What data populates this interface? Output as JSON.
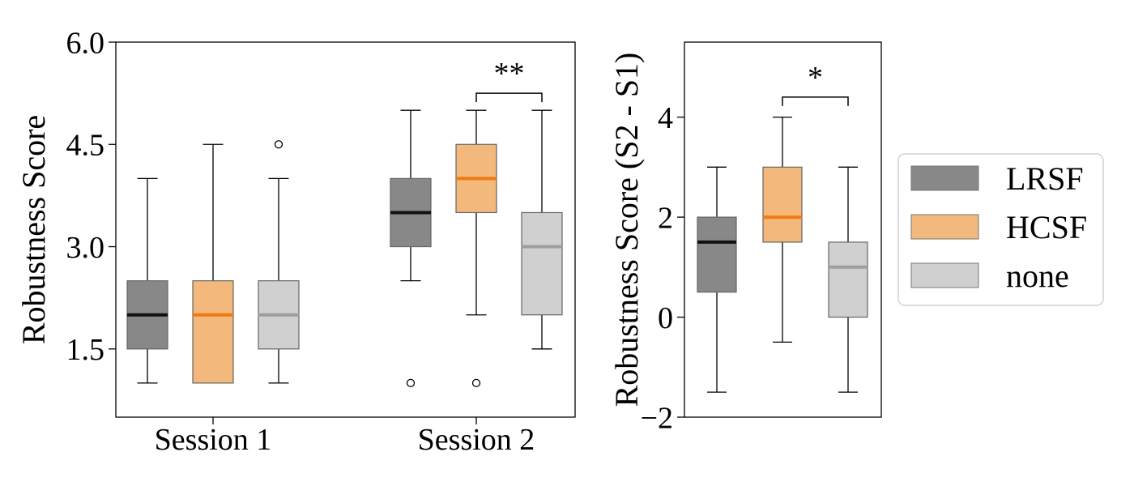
{
  "chart_data": [
    {
      "type": "box",
      "ylabel": "Robustness Score",
      "ylim": [
        0.5,
        6.0
      ],
      "yticks": [
        "1.5",
        "3.0",
        "4.5",
        "6.0"
      ],
      "ytick_values": [
        1.5,
        3.0,
        4.5,
        6.0
      ],
      "categories": [
        "Session 1",
        "Session 2"
      ],
      "groups": [
        {
          "category": "Session 1",
          "boxes": [
            {
              "series": "LRSF",
              "whisker_low": 1.0,
              "q1": 1.5,
              "median": 2.0,
              "q3": 2.5,
              "whisker_high": 4.0,
              "outliers": []
            },
            {
              "series": "HCSF",
              "whisker_low": 1.0,
              "q1": 1.0,
              "median": 2.0,
              "q3": 2.5,
              "whisker_high": 4.5,
              "outliers": []
            },
            {
              "series": "none",
              "whisker_low": 1.0,
              "q1": 1.5,
              "median": 2.0,
              "q3": 2.5,
              "whisker_high": 4.0,
              "outliers": [
                4.5
              ]
            }
          ]
        },
        {
          "category": "Session 2",
          "boxes": [
            {
              "series": "LRSF",
              "whisker_low": 2.5,
              "q1": 3.0,
              "median": 3.5,
              "q3": 4.0,
              "whisker_high": 5.0,
              "outliers": [
                1.0
              ]
            },
            {
              "series": "HCSF",
              "whisker_low": 2.0,
              "q1": 3.5,
              "median": 4.0,
              "q3": 4.5,
              "whisker_high": 5.0,
              "outliers": [
                1.0
              ]
            },
            {
              "series": "none",
              "whisker_low": 1.5,
              "q1": 2.0,
              "median": 3.0,
              "q3": 3.5,
              "whisker_high": 5.0,
              "outliers": []
            }
          ]
        }
      ],
      "annotations": [
        {
          "text": "**",
          "group": "Session 2",
          "from": "HCSF",
          "to": "none",
          "y": 5.25
        }
      ]
    },
    {
      "type": "box",
      "ylabel": "Robustness Score (S2 - S1)",
      "ylim": [
        -2,
        5.5
      ],
      "yticks": [
        "−2",
        "0",
        "2",
        "4"
      ],
      "ytick_values": [
        -2,
        0,
        2,
        4
      ],
      "boxes": [
        {
          "series": "LRSF",
          "whisker_low": -1.5,
          "q1": 0.5,
          "median": 1.5,
          "q3": 2.0,
          "whisker_high": 3.0,
          "outliers": []
        },
        {
          "series": "HCSF",
          "whisker_low": -0.5,
          "q1": 1.5,
          "median": 2.0,
          "q3": 3.0,
          "whisker_high": 4.0,
          "outliers": []
        },
        {
          "series": "none",
          "whisker_low": -1.5,
          "q1": 0.0,
          "median": 1.0,
          "q3": 1.5,
          "whisker_high": 3.0,
          "outliers": []
        }
      ],
      "annotations": [
        {
          "text": "*",
          "from": "HCSF",
          "to": "none",
          "y": 4.4
        }
      ]
    }
  ],
  "legend": {
    "placement": "right",
    "items": [
      {
        "label": "LRSF",
        "fill": "#888888",
        "median": "#111111"
      },
      {
        "label": "HCSF",
        "fill": "#f2b87c",
        "median": "#f07b12"
      },
      {
        "label": "none",
        "fill": "#d0d0d0",
        "median": "#9e9e9e"
      }
    ]
  }
}
